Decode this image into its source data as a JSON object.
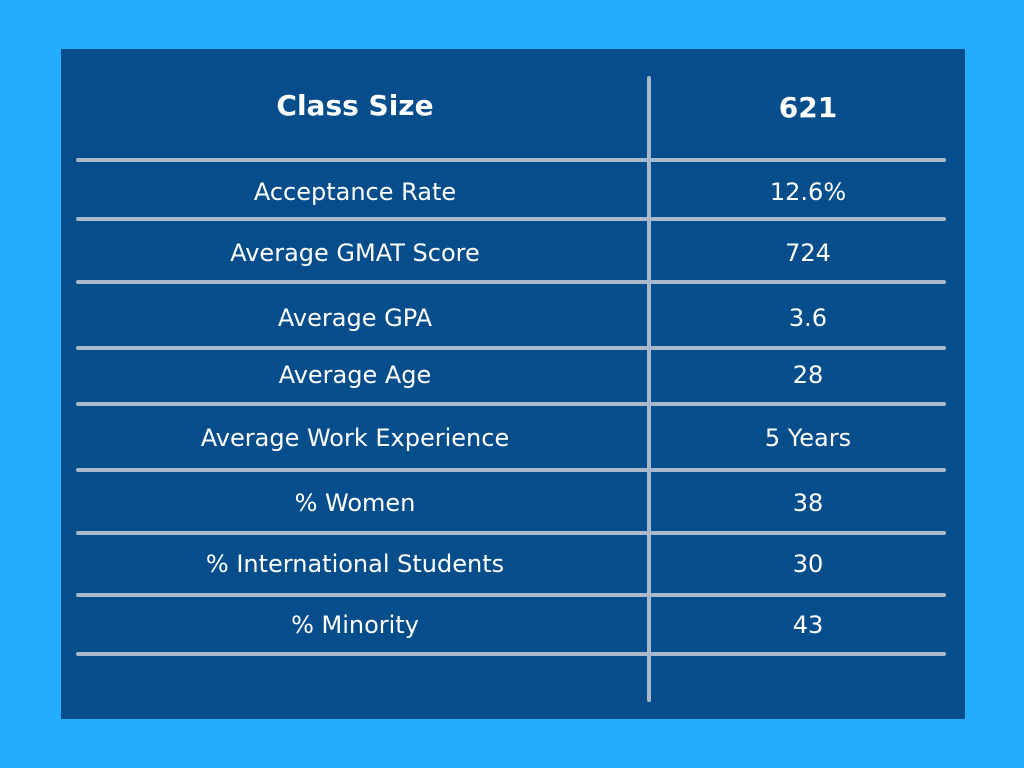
{
  "table": {
    "rows": [
      {
        "label": "Class Size",
        "value": "621"
      },
      {
        "label": "Acceptance Rate",
        "value": "12.6%"
      },
      {
        "label": "Average GMAT Score",
        "value": "724"
      },
      {
        "label": "Average GPA",
        "value": "3.6"
      },
      {
        "label": "Average Age",
        "value": "28"
      },
      {
        "label": "Average Work Experience",
        "value": "5 Years"
      },
      {
        "label": "% Women",
        "value": "38"
      },
      {
        "label": "% International Students",
        "value": "30"
      },
      {
        "label": "% Minority",
        "value": "43"
      }
    ]
  }
}
